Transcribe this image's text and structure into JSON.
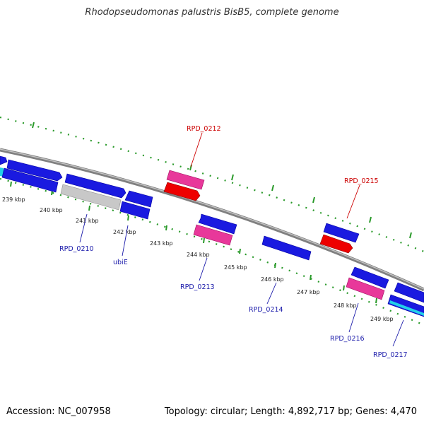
{
  "title": "Rhodopseudomonas palustris BisB5, complete genome",
  "footer": {
    "accession": "Accession: NC_007958",
    "topology": "Topology: circular; Length: 4,892,717 bp; Genes: 4,470"
  },
  "colors": {
    "backbone": "#8a8a8a",
    "forward_gene": "#1a1ae0",
    "reverse_gene": "#1a1ae0",
    "misc_pink": "#e8389a",
    "rrna_red": "#ee0000",
    "pseudo_grey": "#c8c8c8",
    "cyan": "#22d0e8",
    "dots": "#2a9a2a",
    "label_blue": "#1a1aaa",
    "label_red": "#cc0000"
  },
  "ticks": [
    {
      "label": "239 kbp"
    },
    {
      "label": "240 kbp"
    },
    {
      "label": "241 kbp"
    },
    {
      "label": "242 kbp"
    },
    {
      "label": "243 kbp"
    },
    {
      "label": "244 kbp"
    },
    {
      "label": "245 kbp"
    },
    {
      "label": "246 kbp"
    },
    {
      "label": "247 kbp"
    },
    {
      "label": "248 kbp"
    },
    {
      "label": "249 kbp"
    }
  ],
  "gene_labels": [
    {
      "text": "RPD_0212",
      "color": "red"
    },
    {
      "text": "RPD_0215",
      "color": "red"
    },
    {
      "text": "RPD_0210",
      "color": "blue"
    },
    {
      "text": "ubiE",
      "color": "blue"
    },
    {
      "text": "RPD_0213",
      "color": "blue"
    },
    {
      "text": "RPD_0214",
      "color": "blue"
    },
    {
      "text": "RPD_0216",
      "color": "blue"
    },
    {
      "text": "RPD_0217",
      "color": "blue"
    }
  ]
}
